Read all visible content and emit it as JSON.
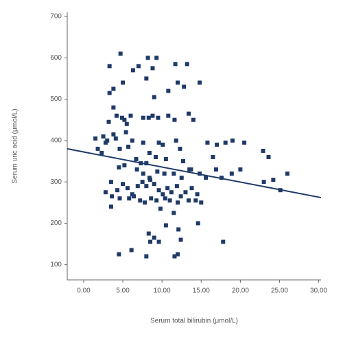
{
  "chart_data": {
    "type": "scatter",
    "x_label": "Serum total bilirubin (μmol/L)",
    "y_label": "Serum uric acid (μmol/L)",
    "color": "#1f3a68",
    "xlim": [
      -2.1,
      30.3
    ],
    "ylim": [
      63,
      710
    ],
    "xticks": [
      {
        "value": 0,
        "label": "0.00"
      },
      {
        "value": 5,
        "label": "5.00"
      },
      {
        "value": 10,
        "label": "10.00"
      },
      {
        "value": 15,
        "label": "15.00"
      },
      {
        "value": 20,
        "label": "20.00"
      },
      {
        "value": 25,
        "label": "25.00"
      },
      {
        "value": 30,
        "label": "30.00"
      }
    ],
    "yticks": [
      100,
      200,
      300,
      400,
      500,
      600,
      700
    ],
    "x": [
      4.7,
      3.3,
      8.2,
      9.3,
      7.0,
      11.7,
      13.2,
      6.3,
      8.8,
      3.8,
      3.3,
      5.0,
      10.8,
      12.0,
      14.8,
      12.8,
      8.0,
      9.0,
      3.8,
      3.2,
      4.2,
      4.9,
      5.2,
      5.5,
      6.0,
      7.6,
      8.3,
      8.8,
      9.5,
      10.8,
      11.6,
      13.4,
      14.0,
      2.5,
      3.0,
      3.8,
      4.1,
      5.4,
      6.2,
      1.8,
      2.8,
      4.6,
      5.7,
      7.6,
      8.4,
      9.6,
      10.1,
      11.8,
      12.3,
      15.8,
      17.0,
      18.1,
      19.0,
      20.5,
      22.9,
      23.6,
      2.3,
      6.7,
      8.0,
      9.2,
      10.5,
      12.7,
      13.5,
      16.5,
      16.9,
      17.6,
      18.9,
      20.0,
      23.0,
      24.2,
      25.1,
      26.0,
      4.5,
      5.2,
      6.8,
      7.6,
      8.4,
      9.4,
      10.3,
      11.5,
      12.5,
      13.7,
      14.8,
      15.6,
      3.5,
      4.3,
      5.0,
      5.6,
      6.2,
      6.9,
      7.5,
      8.0,
      8.5,
      9.0,
      9.6,
      10.1,
      10.7,
      11.2,
      11.9,
      12.4,
      13.0,
      13.8,
      14.5,
      2.8,
      3.6,
      4.6,
      5.8,
      6.4,
      7.2,
      7.8,
      8.6,
      9.3,
      10.4,
      11.0,
      12.0,
      13.4,
      14.3,
      15.0,
      3.5,
      9.8,
      11.5,
      14.6,
      10.5,
      12.1,
      8.3,
      9.0,
      12.4,
      8.5,
      9.6,
      17.8,
      6.1,
      4.5,
      8.0,
      11.6,
      12.0,
      7.3,
      1.5
    ],
    "values": [
      610,
      580,
      600,
      600,
      580,
      585,
      585,
      570,
      575,
      525,
      515,
      540,
      520,
      540,
      540,
      530,
      550,
      505,
      480,
      445,
      460,
      455,
      450,
      440,
      460,
      455,
      455,
      460,
      455,
      460,
      450,
      465,
      450,
      410,
      400,
      415,
      405,
      420,
      400,
      380,
      395,
      380,
      385,
      395,
      370,
      395,
      390,
      400,
      380,
      395,
      390,
      395,
      400,
      395,
      375,
      360,
      370,
      355,
      345,
      360,
      355,
      350,
      330,
      360,
      330,
      310,
      320,
      330,
      300,
      305,
      280,
      320,
      335,
      340,
      330,
      320,
      310,
      325,
      320,
      320,
      310,
      330,
      320,
      310,
      300,
      280,
      295,
      285,
      270,
      290,
      300,
      290,
      305,
      295,
      280,
      270,
      285,
      275,
      290,
      265,
      275,
      285,
      270,
      275,
      265,
      260,
      260,
      265,
      255,
      250,
      260,
      255,
      260,
      255,
      250,
      255,
      255,
      250,
      240,
      235,
      225,
      200,
      195,
      185,
      175,
      165,
      160,
      155,
      155,
      155,
      135,
      125,
      120,
      120,
      125,
      345,
      405
    ],
    "fit": {
      "x": [
        -2.1,
        30.3
      ],
      "y": [
        380,
        262
      ]
    }
  }
}
